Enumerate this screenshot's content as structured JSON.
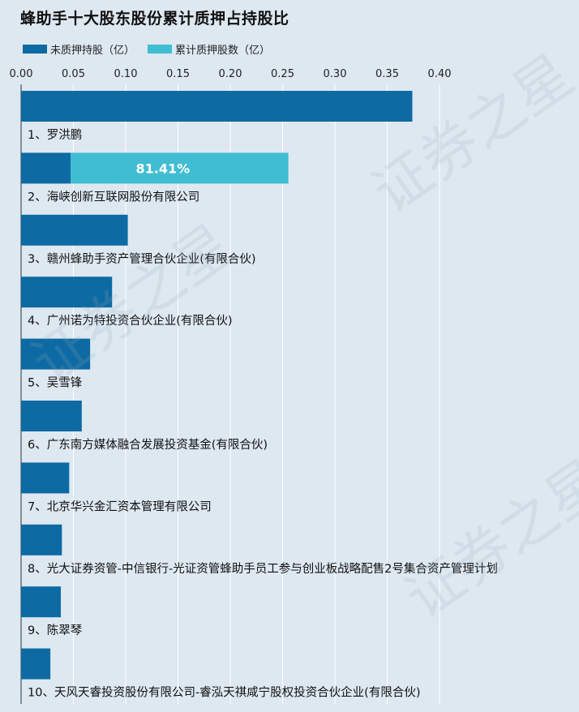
{
  "chart_data": {
    "type": "bar",
    "orientation": "horizontal",
    "title": "蜂助手十大股东股份累计质押占持股比",
    "xlim": [
      0,
      0.4
    ],
    "x_ticks": [
      "0.00",
      "0.05",
      "0.10",
      "0.15",
      "0.20",
      "0.25",
      "0.30",
      "0.35",
      "0.40"
    ],
    "x_tick_values": [
      0,
      0.05,
      0.1,
      0.15,
      0.2,
      0.25,
      0.3,
      0.35,
      0.4
    ],
    "grid": true,
    "legend_position": "top-left",
    "categories": [
      "1、罗洪鹏",
      "2、海峡创新互联网股份有限公司",
      "3、赣州蜂助手资产管理合伙企业(有限合伙)",
      "4、广州诺为特投资合伙企业(有限合伙)",
      "5、吴雪锋",
      "6、广东南方媒体融合发展投资基金(有限合伙)",
      "7、北京华兴金汇资本管理有限公司",
      "8、光大证券资管-中信银行-光证资管蜂助手员工参与创业板战略配售2号集合资产管理计划",
      "9、陈翠琴",
      "10、天风天睿投资股份有限公司-睿泓天祺咸宁股权投资合伙企业(有限合伙)"
    ],
    "series": [
      {
        "name": "未质押持股（亿）",
        "color": "#0e6aa3",
        "values": [
          0.374,
          0.0475,
          0.102,
          0.087,
          0.066,
          0.058,
          0.046,
          0.039,
          0.038,
          0.028
        ]
      },
      {
        "name": "累计质押股数（亿）",
        "color": "#40bdd3",
        "values": [
          0,
          0.208,
          0,
          0,
          0,
          0,
          0,
          0,
          0,
          0
        ]
      }
    ],
    "data_labels": [
      "",
      "81.41%",
      "",
      "",
      "",
      "",
      "",
      "",
      "",
      ""
    ]
  },
  "watermark": "证券之星"
}
